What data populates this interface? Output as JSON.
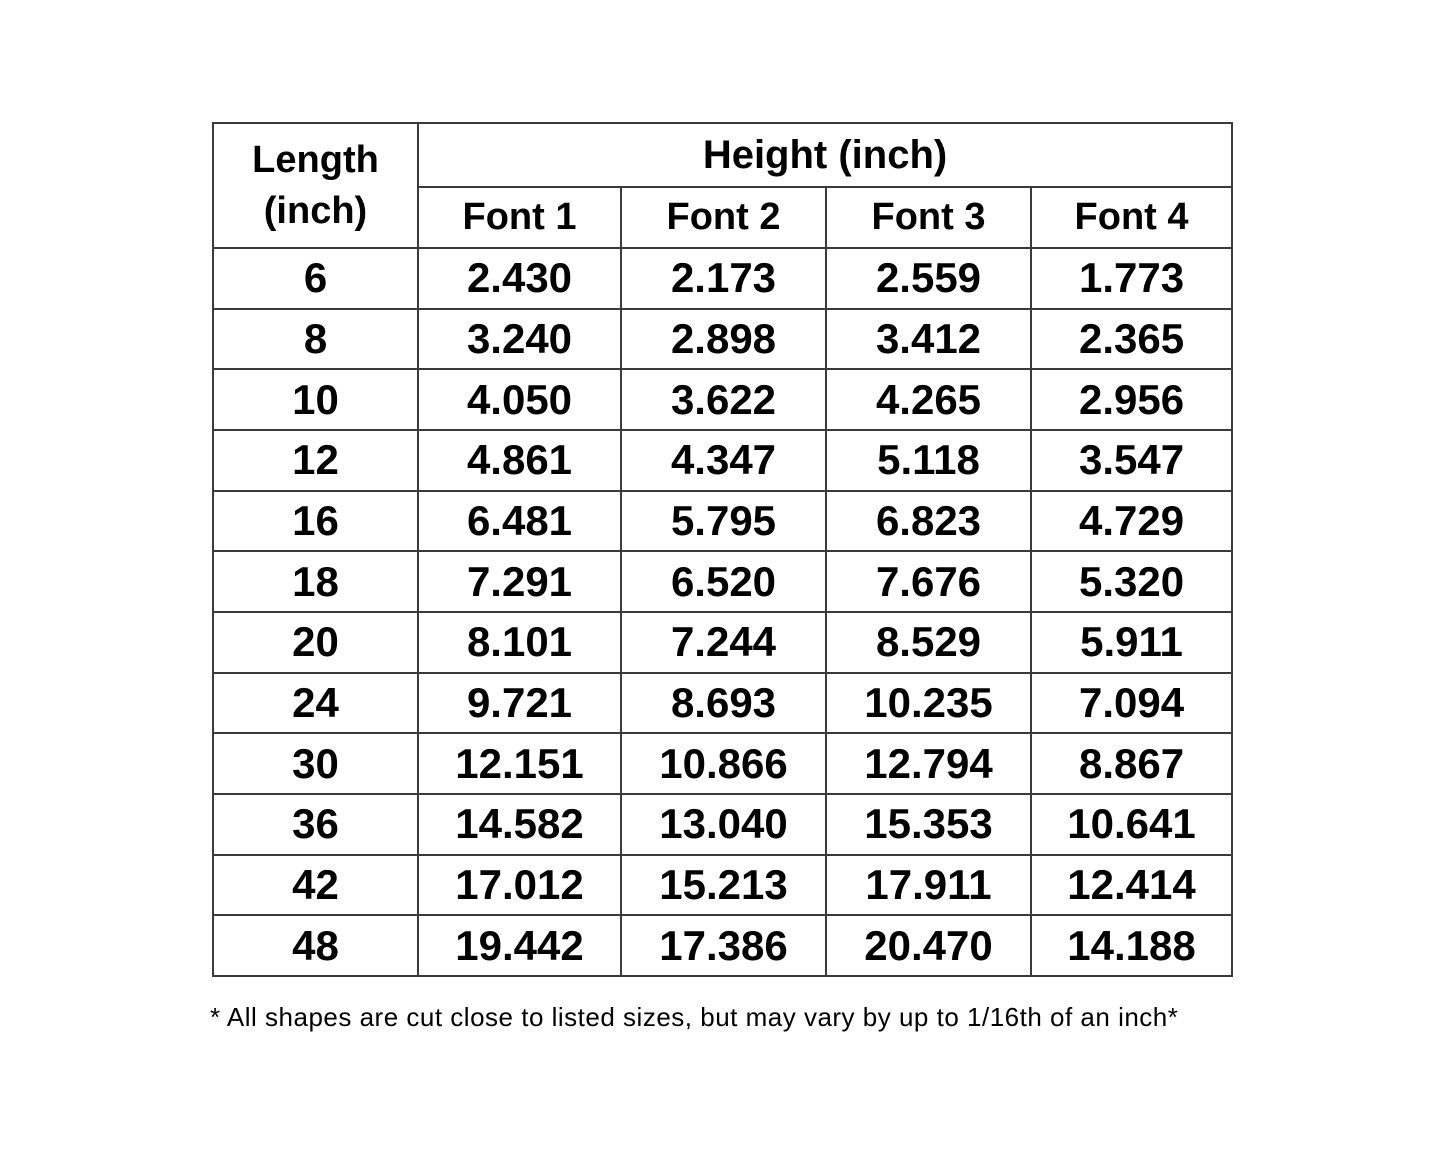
{
  "chart_data": {
    "type": "table",
    "corner_header_lines": [
      "Length",
      "(inch)"
    ],
    "group_header": "Height (inch)",
    "columns": [
      "Font 1",
      "Font 2",
      "Font 3",
      "Font 4"
    ],
    "rows": [
      {
        "length": "6",
        "values": [
          "2.430",
          "2.173",
          "2.559",
          "1.773"
        ]
      },
      {
        "length": "8",
        "values": [
          "3.240",
          "2.898",
          "3.412",
          "2.365"
        ]
      },
      {
        "length": "10",
        "values": [
          "4.050",
          "3.622",
          "4.265",
          "2.956"
        ]
      },
      {
        "length": "12",
        "values": [
          "4.861",
          "4.347",
          "5.118",
          "3.547"
        ]
      },
      {
        "length": "16",
        "values": [
          "6.481",
          "5.795",
          "6.823",
          "4.729"
        ]
      },
      {
        "length": "18",
        "values": [
          "7.291",
          "6.520",
          "7.676",
          "5.320"
        ]
      },
      {
        "length": "20",
        "values": [
          "8.101",
          "7.244",
          "8.529",
          "5.911"
        ]
      },
      {
        "length": "24",
        "values": [
          "9.721",
          "8.693",
          "10.235",
          "7.094"
        ]
      },
      {
        "length": "30",
        "values": [
          "12.151",
          "10.866",
          "12.794",
          "8.867"
        ]
      },
      {
        "length": "36",
        "values": [
          "14.582",
          "13.040",
          "15.353",
          "10.641"
        ]
      },
      {
        "length": "42",
        "values": [
          "17.012",
          "15.213",
          "17.911",
          "12.414"
        ]
      },
      {
        "length": "48",
        "values": [
          "19.442",
          "17.386",
          "20.470",
          "14.188"
        ]
      }
    ],
    "footnote": "* All shapes are cut close to listed sizes, but may vary by up to 1/16th of an inch*",
    "layout_hints": {
      "grid": "on",
      "header_levels": 2
    }
  },
  "colors": {
    "border": "#3a3a3a",
    "text": "#000000",
    "background": "#ffffff"
  }
}
